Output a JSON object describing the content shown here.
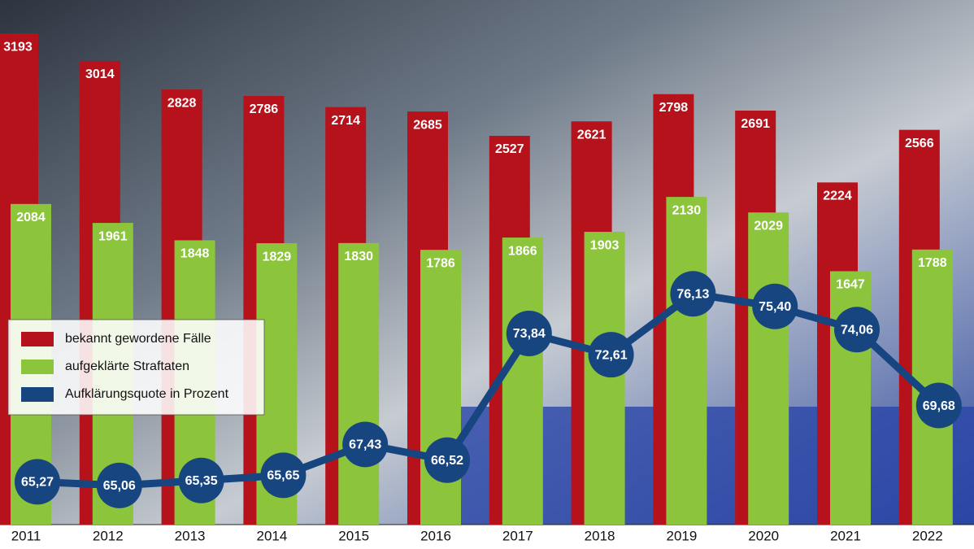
{
  "chart_data": {
    "type": "bar",
    "categories": [
      "2011",
      "2012",
      "2013",
      "2014",
      "2015",
      "2016",
      "2017",
      "2018",
      "2019",
      "2020",
      "2021",
      "2022"
    ],
    "series": [
      {
        "name": "bekannt gewordene Fälle",
        "color": "#b5121b",
        "values": [
          3193,
          3014,
          2828,
          2786,
          2714,
          2685,
          2527,
          2621,
          2798,
          2691,
          2224,
          2566
        ]
      },
      {
        "name": "aufgeklärte Straftaten",
        "color": "#8cc43c",
        "values": [
          2084,
          1961,
          1848,
          1829,
          1830,
          1786,
          1866,
          1903,
          2130,
          2029,
          1647,
          1788
        ]
      },
      {
        "name": "Aufklärungsquote in Prozent",
        "color": "#17457f",
        "type": "line",
        "axis": "y2",
        "values": [
          65.27,
          65.06,
          65.35,
          65.65,
          67.43,
          66.52,
          73.84,
          72.61,
          76.13,
          75.4,
          74.06,
          69.68
        ],
        "value_labels": [
          "65,27",
          "65,06",
          "65,35",
          "65,65",
          "67,43",
          "66,52",
          "73,84",
          "72,61",
          "76,13",
          "75,40",
          "74,06",
          "69,68"
        ]
      }
    ],
    "ylim": [
      0,
      3410
    ],
    "y2lim": [
      62.8,
      93.1
    ],
    "legend": "lower-left"
  }
}
